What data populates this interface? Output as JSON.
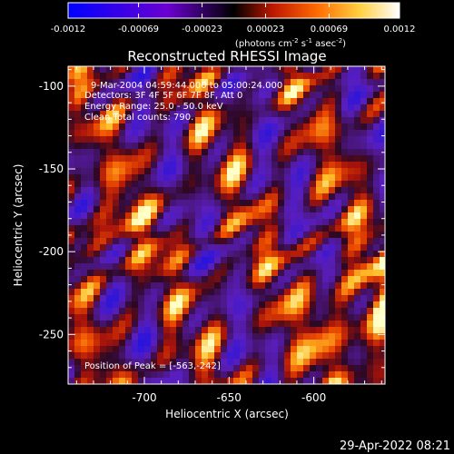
{
  "colorbar": {
    "tick_labels": [
      "-0.0012",
      "-0.00069",
      "-0.00023",
      "0.00023",
      "0.00069",
      "0.0012"
    ],
    "tick_values": [
      -0.0012,
      -0.00069,
      -0.00023,
      0.00023,
      0.00069,
      0.0012
    ],
    "range": [
      -0.0012,
      0.0012
    ],
    "unit_main": "(photons cm",
    "unit_sup1": "-2",
    "unit_mid1": " s",
    "unit_sup2": "-1",
    "unit_mid2": " asec",
    "unit_sup3": "-2",
    "unit_end": ")",
    "colors": [
      "#0000ff",
      "#6a00d0",
      "#000000",
      "#e03000",
      "#ff9000",
      "#ffff80",
      "#ffffff"
    ]
  },
  "plot": {
    "title": "Reconstructed RHESSI Image",
    "xlabel": "Heliocentric X (arcsec)",
    "ylabel": "Heliocentric Y (arcsec)",
    "x_ticks": [
      "-700",
      "-650",
      "-600"
    ],
    "x_tick_values": [
      -700,
      -650,
      -600
    ],
    "y_ticks": [
      "-100",
      "-150",
      "-200",
      "-250"
    ],
    "y_tick_values": [
      -100,
      -150,
      -200,
      -250
    ],
    "xlim": [
      -745,
      -558
    ],
    "ylim": [
      -280,
      -88
    ],
    "annotations": [
      "9-Mar-2004 04:59:44.000 to 05:00:24.000",
      "Detectors: 3F 4F 5F 6F 7F 8F, Att 0",
      "Energy Range: 25.0 - 50.0 keV",
      "Clean     Total counts: 790."
    ],
    "peak_label": "Position of Peak = [-563,-242]"
  },
  "footer": {
    "timestamp": "29-Apr-2022 08:21"
  }
}
